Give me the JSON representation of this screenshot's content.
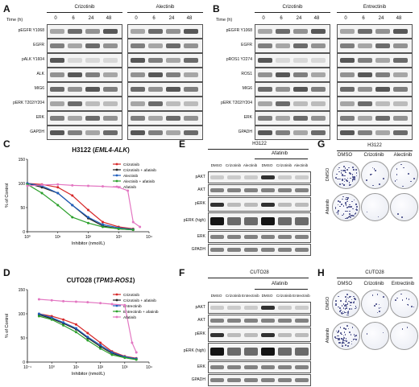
{
  "panels": {
    "A": {
      "label": "A",
      "time_label": "Time (h)",
      "time_points": [
        "0",
        "6",
        "24",
        "48"
      ],
      "drugs": [
        "Crizotinib",
        "Alectinib"
      ],
      "rows": [
        "pEGFR Y1068",
        "EGFR",
        "pALK Y1604",
        "ALK",
        "MIG6",
        "pERK T202/Y204",
        "ERK",
        "GAPDH"
      ]
    },
    "B": {
      "label": "B",
      "time_label": "Time (h)",
      "time_points": [
        "0",
        "6",
        "24",
        "48"
      ],
      "drugs": [
        "Crizotinib",
        "Entrectinib"
      ],
      "rows": [
        "pEGFR Y1068",
        "EGFR",
        "pROS1 Y2274",
        "ROS1",
        "MIG6",
        "pERK T202/Y204",
        "ERK",
        "GPADH"
      ]
    },
    "C": {
      "label": "C",
      "title_line": "H3122 (",
      "title_italic": "EML4-ALK",
      "title_close": ")"
    },
    "D": {
      "label": "D",
      "title_line": "CUTO28 (",
      "title_italic": "TPM3-ROS1",
      "title_close": ")"
    },
    "E": {
      "label": "E",
      "cell_line": "H3122",
      "group_label": "Afatinib",
      "lanes": [
        "DMSO",
        "Crizotinib",
        "Alectinib",
        "DMSO",
        "Crizotinib",
        "Alectinib"
      ],
      "rows": [
        "pAKT",
        "AKT",
        "pERK",
        "pERK (high)",
        "ERK",
        "GPADH"
      ]
    },
    "F": {
      "label": "F",
      "cell_line": "CUTO28",
      "group_label": "Afatinib",
      "lanes": [
        "DMSO",
        "Crizotinib",
        "Entrectinib",
        "DMSO",
        "Crizotinib",
        "Entrectinib"
      ],
      "rows": [
        "pAKT",
        "AKT",
        "pERK",
        "pERK (high)",
        "ERK",
        "GPADH"
      ]
    },
    "G": {
      "label": "G",
      "cell_line": "H3122",
      "cols": [
        "DMSO",
        "Crizotinib",
        "Alectinib"
      ],
      "rows": [
        "DMSO",
        "Afatinib"
      ]
    },
    "H": {
      "label": "H",
      "cell_line": "CUTO28",
      "cols": [
        "DMSO",
        "Crizotinib",
        "Entrectinib"
      ],
      "rows": [
        "DMSO",
        "Afatinib"
      ]
    }
  },
  "chart_data": [
    {
      "type": "line",
      "panel": "C",
      "title": "H3122 (EML4-ALK)",
      "xlabel": "Inhibitor (nmol/L)",
      "ylabel": "% of Control",
      "xscale": "log",
      "xlim": [
        1,
        10000
      ],
      "ylim": [
        0,
        150
      ],
      "xticks": [
        "10⁰",
        "10¹",
        "10²",
        "10³",
        "10⁴"
      ],
      "yticks": [
        "0",
        "50",
        "100",
        "150"
      ],
      "legend_position": "upper-right",
      "series": [
        {
          "name": "Crizotinib",
          "color": "#d62728",
          "x": [
            1,
            3,
            10,
            30,
            100,
            300,
            1000,
            3000
          ],
          "y": [
            100,
            98,
            92,
            75,
            45,
            20,
            10,
            6
          ]
        },
        {
          "name": "Crizotinib + afatinib",
          "color": "#222222",
          "x": [
            1,
            3,
            10,
            30,
            100,
            300,
            1000,
            3000
          ],
          "y": [
            100,
            92,
            80,
            55,
            28,
            12,
            6,
            4
          ]
        },
        {
          "name": "Alectinib",
          "color": "#1f5fbf",
          "x": [
            1,
            3,
            10,
            30,
            100,
            300,
            1000,
            3000
          ],
          "y": [
            100,
            95,
            80,
            55,
            30,
            15,
            8,
            5
          ]
        },
        {
          "name": "Alectinib + afatinib",
          "color": "#2ca02c",
          "x": [
            1,
            3,
            10,
            30,
            100,
            300,
            1000,
            3000
          ],
          "y": [
            98,
            80,
            55,
            30,
            18,
            10,
            6,
            4
          ]
        },
        {
          "name": "Afatinib",
          "color": "#e377c2",
          "x": [
            1,
            3,
            10,
            30,
            100,
            300,
            1000,
            2000,
            3000,
            5000
          ],
          "y": [
            95,
            97,
            98,
            96,
            95,
            94,
            92,
            85,
            20,
            10
          ]
        }
      ]
    },
    {
      "type": "line",
      "panel": "D",
      "title": "CUTO28 (TPM3-ROS1)",
      "xlabel": "Inhibitor (nmol/L)",
      "ylabel": "% of Control",
      "xscale": "log",
      "xlim": [
        0.1,
        10000
      ],
      "ylim": [
        0,
        150
      ],
      "xticks": [
        "10⁻¹",
        "10⁰",
        "10¹",
        "10²",
        "10³",
        "10⁴"
      ],
      "yticks": [
        "0",
        "50",
        "100",
        "150"
      ],
      "legend_position": "upper-right",
      "series": [
        {
          "name": "Crizotinib",
          "color": "#d62728",
          "x": [
            0.3,
            1,
            3,
            10,
            30,
            100,
            300,
            1000,
            3000
          ],
          "y": [
            100,
            95,
            88,
            78,
            60,
            40,
            22,
            12,
            8
          ]
        },
        {
          "name": "Crizotinib + afatinib",
          "color": "#222222",
          "x": [
            0.3,
            1,
            3,
            10,
            30,
            100,
            300,
            1000,
            3000
          ],
          "y": [
            98,
            90,
            80,
            68,
            50,
            32,
            18,
            10,
            6
          ]
        },
        {
          "name": "Entrectinib",
          "color": "#1f5fbf",
          "x": [
            0.3,
            1,
            3,
            10,
            30,
            100,
            300,
            1000,
            3000
          ],
          "y": [
            100,
            92,
            82,
            70,
            52,
            35,
            20,
            11,
            7
          ]
        },
        {
          "name": "Entrectinib + afatinib",
          "color": "#2ca02c",
          "x": [
            0.3,
            1,
            3,
            10,
            30,
            100,
            300,
            1000,
            3000
          ],
          "y": [
            95,
            88,
            76,
            62,
            45,
            28,
            15,
            9,
            5
          ]
        },
        {
          "name": "Afatinib",
          "color": "#e377c2",
          "x": [
            0.3,
            1,
            3,
            10,
            30,
            100,
            300,
            1000,
            2000,
            3000
          ],
          "y": [
            130,
            128,
            126,
            125,
            124,
            122,
            120,
            118,
            40,
            20
          ]
        }
      ]
    }
  ]
}
